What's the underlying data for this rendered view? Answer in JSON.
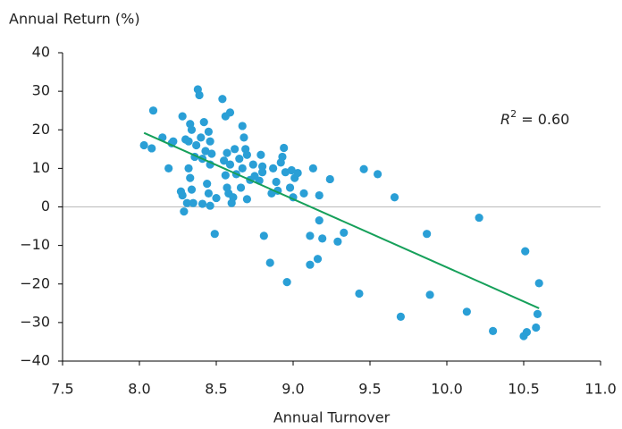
{
  "chart_data": {
    "type": "scatter",
    "y_label": "Annual Return (%)",
    "x_label": "Annual Turnover",
    "annotation": [
      "R",
      "2",
      " = 0.60"
    ],
    "color": "#2a9fd6",
    "x": [
      8.03,
      8.08,
      8.09,
      8.15,
      8.19,
      8.21,
      8.22,
      8.28,
      8.27,
      8.28,
      8.29,
      8.3,
      8.31,
      8.32,
      8.32,
      8.33,
      8.33,
      8.34,
      8.34,
      8.35,
      8.36,
      8.37,
      8.38,
      8.39,
      8.4,
      8.41,
      8.41,
      8.42,
      8.43,
      8.44,
      8.45,
      8.45,
      8.46,
      8.46,
      8.46,
      8.47,
      8.49,
      8.5,
      8.54,
      8.55,
      8.56,
      8.56,
      8.57,
      8.57,
      8.58,
      8.59,
      8.59,
      8.6,
      8.61,
      8.62,
      8.63,
      8.65,
      8.66,
      8.67,
      8.67,
      8.68,
      8.69,
      8.7,
      8.7,
      8.72,
      8.74,
      8.75,
      8.78,
      8.79,
      8.8,
      8.8,
      8.81,
      8.85,
      8.86,
      8.87,
      8.89,
      8.9,
      8.92,
      8.93,
      8.94,
      8.95,
      8.96,
      8.98,
      8.99,
      9.0,
      9.01,
      9.03,
      9.07,
      9.11,
      9.11,
      9.13,
      9.16,
      9.17,
      9.17,
      9.19,
      9.24,
      9.29,
      9.33,
      9.43,
      9.46,
      9.55,
      9.66,
      9.7,
      9.87,
      9.89,
      10.13,
      10.21,
      10.3,
      10.5,
      10.51,
      10.52,
      10.58,
      10.59,
      10.6
    ],
    "values": [
      16,
      15.2,
      25,
      18,
      10,
      16.5,
      17,
      23.5,
      4,
      3,
      -1.2,
      17.5,
      1,
      10,
      17,
      21.5,
      7.5,
      20,
      4.5,
      1,
      13,
      16,
      30.5,
      29,
      18,
      12.5,
      0.8,
      22,
      14.5,
      6,
      3.5,
      19.5,
      17,
      11,
      0.3,
      13.8,
      -7,
      2.3,
      28,
      12,
      23.5,
      8.2,
      14,
      5,
      3.5,
      24.5,
      11,
      1,
      2.5,
      15,
      8.5,
      12.5,
      5,
      21,
      10,
      18,
      15,
      13.5,
      2,
      7,
      11,
      8,
      6.8,
      13.5,
      10.5,
      9,
      -7.5,
      -14.5,
      3.5,
      10,
      6.5,
      4.2,
      11.5,
      13,
      15.3,
      9,
      -19.5,
      5,
      9.5,
      2.5,
      7.5,
      8.8,
      3.5,
      -7.5,
      -15,
      10,
      -13.5,
      3,
      -3.5,
      -8.2,
      7.2,
      -9,
      -6.7,
      -22.5,
      9.8,
      8.5,
      2.5,
      -28.5,
      -7,
      -22.8,
      -27.2,
      -2.8,
      -32.2,
      -33.5,
      -11.5,
      -32.5,
      -31.3,
      -27.8,
      -19.8
    ],
    "trendline": {
      "color": "#16a05a",
      "x": [
        8.03,
        10.6
      ],
      "values": [
        19.2,
        -26.3
      ]
    },
    "xlim": [
      7.5,
      11.0
    ],
    "xticks": [
      7.5,
      {
        "value": 8,
        "label": "8.0"
      },
      8.5,
      {
        "value": 9,
        "label": "9.0"
      },
      9.5,
      {
        "value": 10,
        "label": "10.0"
      },
      10.5,
      {
        "value": 11,
        "label": "11.0"
      }
    ],
    "ylim": [
      -40,
      40
    ],
    "yticks": [
      {
        "value": -40,
        "label": "−40"
      },
      {
        "value": -30,
        "label": "−30"
      },
      {
        "value": -20,
        "label": "−20"
      },
      {
        "value": -10,
        "label": "−10"
      },
      0,
      10,
      20,
      30,
      40
    ],
    "zero_line": true
  }
}
